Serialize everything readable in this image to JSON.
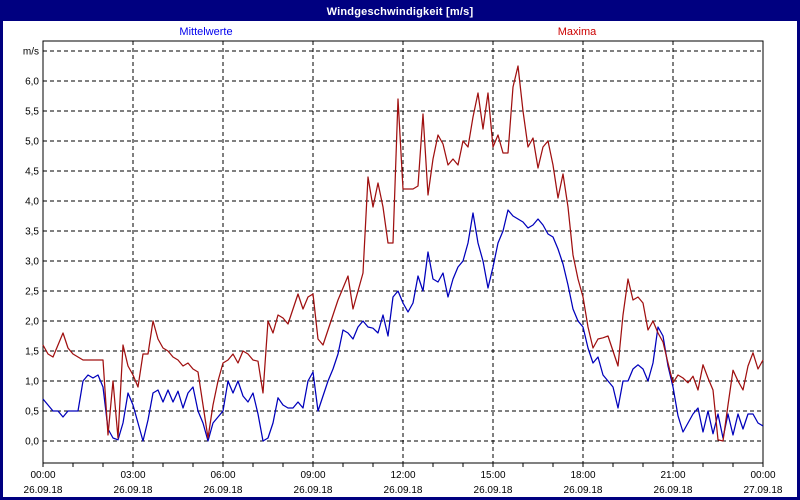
{
  "header": {
    "title": "Windgeschwindigkeit [m/s]"
  },
  "colors": {
    "frame": "#000080",
    "titlebar_bg": "#000080",
    "titlebar_text": "#ffffff",
    "plot_border": "#000000",
    "grid": "#000000",
    "background": "#ffffff"
  },
  "chart_data": {
    "type": "line",
    "title": "Windgeschwindigkeit [m/s]",
    "unit_label": "m/s",
    "grid": "dashed",
    "legend_position": "top",
    "sample_interval_minutes": 10,
    "x_range_hours": [
      0,
      24
    ],
    "ylim": [
      0,
      6.5
    ],
    "y_tick_step": 0.5,
    "y_tick_labels": [
      "0,0",
      "0,5",
      "1,0",
      "1,5",
      "2,0",
      "2,5",
      "3,0",
      "3,5",
      "4,0",
      "4,5",
      "5,0",
      "5,5",
      "6,0"
    ],
    "x_ticks": [
      {
        "time": "00:00",
        "date": "26.09.18"
      },
      {
        "time": "03:00",
        "date": "26.09.18"
      },
      {
        "time": "06:00",
        "date": "26.09.18"
      },
      {
        "time": "09:00",
        "date": "26.09.18"
      },
      {
        "time": "12:00",
        "date": "26.09.18"
      },
      {
        "time": "15:00",
        "date": "26.09.18"
      },
      {
        "time": "18:00",
        "date": "26.09.18"
      },
      {
        "time": "21:00",
        "date": "26.09.18"
      },
      {
        "time": "00:00",
        "date": "27.09.18"
      }
    ],
    "series": [
      {
        "name": "Mittelwerte",
        "color": "#0000bb",
        "legend_color": "#0000ee",
        "values": [
          0.7,
          0.6,
          0.5,
          0.5,
          0.4,
          0.5,
          0.5,
          0.5,
          1.0,
          1.1,
          1.05,
          1.1,
          0.9,
          0.2,
          0.05,
          0.02,
          0.3,
          0.8,
          0.6,
          0.3,
          0.0,
          0.35,
          0.8,
          0.85,
          0.65,
          0.85,
          0.65,
          0.83,
          0.55,
          0.8,
          0.9,
          0.5,
          0.3,
          0.0,
          0.3,
          0.4,
          0.5,
          1.0,
          0.8,
          1.0,
          0.75,
          0.65,
          0.8,
          0.45,
          0.0,
          0.05,
          0.3,
          0.72,
          0.6,
          0.55,
          0.55,
          0.65,
          0.55,
          1.0,
          1.15,
          0.5,
          0.75,
          1.0,
          1.2,
          1.45,
          1.85,
          1.8,
          1.7,
          1.9,
          2.0,
          1.9,
          1.88,
          1.8,
          2.1,
          1.75,
          2.4,
          2.5,
          2.3,
          2.15,
          2.3,
          2.75,
          2.5,
          3.15,
          2.7,
          2.65,
          2.8,
          2.4,
          2.7,
          2.9,
          3.0,
          3.3,
          3.8,
          3.3,
          3.0,
          2.55,
          2.9,
          3.3,
          3.5,
          3.85,
          3.75,
          3.7,
          3.65,
          3.55,
          3.6,
          3.7,
          3.6,
          3.45,
          3.4,
          3.2,
          2.95,
          2.6,
          2.2,
          2.0,
          1.9,
          1.55,
          1.3,
          1.4,
          1.1,
          1.0,
          0.9,
          0.55,
          1.0,
          1.0,
          1.2,
          1.27,
          1.2,
          1.0,
          1.3,
          1.9,
          1.75,
          1.25,
          0.9,
          0.42,
          0.15,
          0.3,
          0.45,
          0.55,
          0.15,
          0.5,
          0.12,
          0.45,
          0.05,
          0.45,
          0.1,
          0.45,
          0.2,
          0.45,
          0.45,
          0.3,
          0.25
        ]
      },
      {
        "name": "Maxima",
        "color": "#a01010",
        "legend_color": "#cc0000",
        "values": [
          1.6,
          1.45,
          1.4,
          1.6,
          1.8,
          1.55,
          1.45,
          1.4,
          1.35,
          1.35,
          1.35,
          1.35,
          1.35,
          0.1,
          1.0,
          0.05,
          1.6,
          1.25,
          1.1,
          0.9,
          1.45,
          1.45,
          2.0,
          1.7,
          1.55,
          1.5,
          1.4,
          1.35,
          1.25,
          1.3,
          1.2,
          1.15,
          0.6,
          0.05,
          0.6,
          1.0,
          1.3,
          1.35,
          1.45,
          1.3,
          1.5,
          1.45,
          1.35,
          1.33,
          0.8,
          2.0,
          1.8,
          2.1,
          2.05,
          1.95,
          2.2,
          2.45,
          2.2,
          2.4,
          2.45,
          1.7,
          1.6,
          1.85,
          2.1,
          2.35,
          2.55,
          2.75,
          2.2,
          2.5,
          2.8,
          4.4,
          3.9,
          4.3,
          3.9,
          3.3,
          3.3,
          5.7,
          4.2,
          4.2,
          4.2,
          4.25,
          5.45,
          4.1,
          4.7,
          5.1,
          4.95,
          4.6,
          4.7,
          4.6,
          5.0,
          4.9,
          5.4,
          5.8,
          5.2,
          5.8,
          4.9,
          5.1,
          4.8,
          4.8,
          5.9,
          6.25,
          5.5,
          4.9,
          5.05,
          4.55,
          4.9,
          5.0,
          4.6,
          4.05,
          4.45,
          3.9,
          3.1,
          2.7,
          2.4,
          1.9,
          1.55,
          1.7,
          1.72,
          1.75,
          1.5,
          1.25,
          2.1,
          2.7,
          2.35,
          2.4,
          2.3,
          1.85,
          2.0,
          1.8,
          1.65,
          1.3,
          0.97,
          1.1,
          1.05,
          0.97,
          1.08,
          0.85,
          1.27,
          1.05,
          0.85,
          0.02,
          0.0,
          0.6,
          1.18,
          1.0,
          0.85,
          1.25,
          1.47,
          1.2,
          1.35
        ]
      }
    ]
  }
}
